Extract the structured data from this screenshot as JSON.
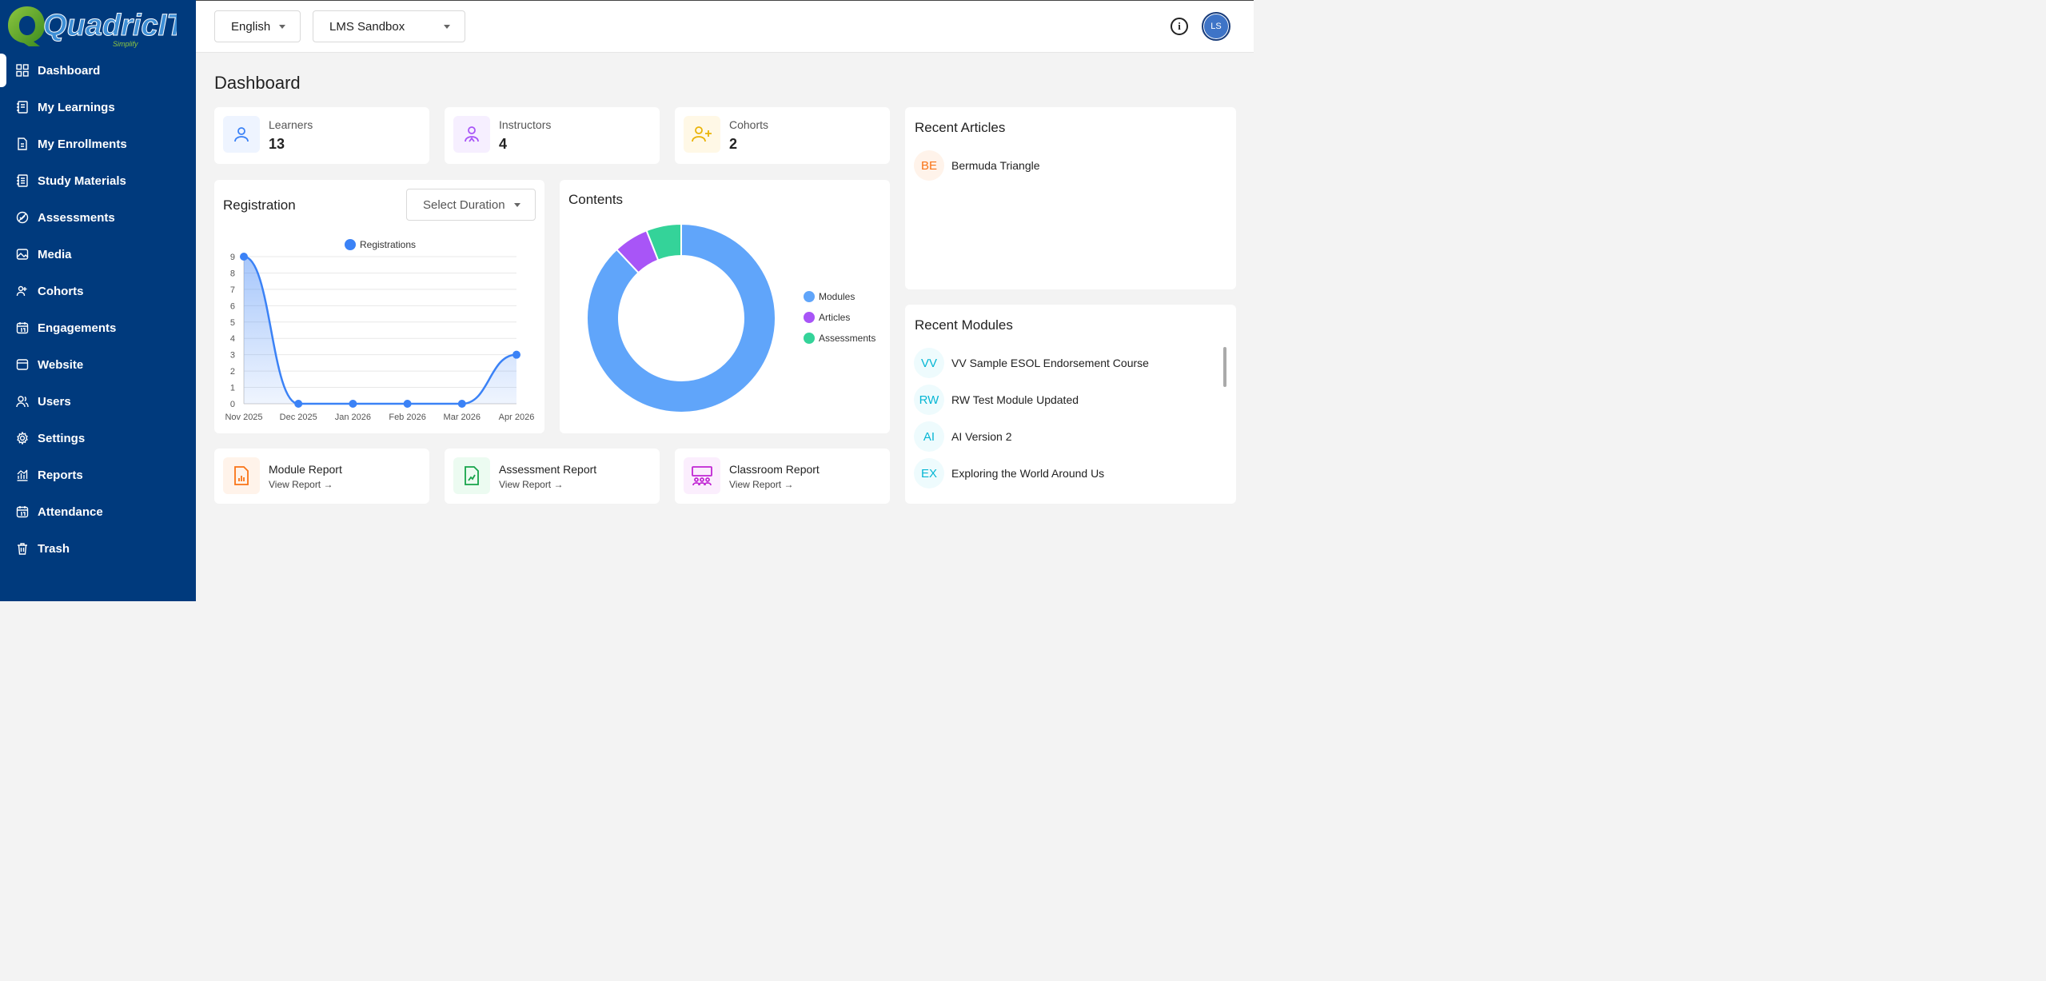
{
  "brand": {
    "logo_text": "QuadricIT",
    "logo_tagline": "Simplify"
  },
  "sidebar": {
    "items": [
      {
        "label": "Dashboard",
        "icon": "grid-icon",
        "active": true
      },
      {
        "label": "My Learnings",
        "icon": "notebook-icon"
      },
      {
        "label": "My Enrollments",
        "icon": "document-icon"
      },
      {
        "label": "Study Materials",
        "icon": "book-icon"
      },
      {
        "label": "Assessments",
        "icon": "assessment-icon"
      },
      {
        "label": "Media",
        "icon": "image-icon"
      },
      {
        "label": "Cohorts",
        "icon": "people-icon"
      },
      {
        "label": "Engagements",
        "icon": "calendar-icon"
      },
      {
        "label": "Website",
        "icon": "browser-icon"
      },
      {
        "label": "Users",
        "icon": "users-icon"
      },
      {
        "label": "Settings",
        "icon": "gear-icon"
      },
      {
        "label": "Reports",
        "icon": "chart-icon"
      },
      {
        "label": "Attendance",
        "icon": "calendar-icon"
      },
      {
        "label": "Trash",
        "icon": "trash-icon"
      }
    ]
  },
  "topbar": {
    "language": "English",
    "workspace": "LMS Sandbox",
    "info_glyph": "i",
    "avatar_initials": "LS"
  },
  "page_title": "Dashboard",
  "stats": [
    {
      "label": "Learners",
      "value": "13",
      "icon": "person-icon",
      "color": "#3b82f6",
      "bg": "#eef4ff"
    },
    {
      "label": "Instructors",
      "value": "4",
      "icon": "instructor-icon",
      "color": "#a855f7",
      "bg": "#f6efff"
    },
    {
      "label": "Cohorts",
      "value": "2",
      "icon": "add-person-icon",
      "color": "#eab308",
      "bg": "#fff8e6"
    }
  ],
  "registration": {
    "title": "Registration",
    "duration_placeholder": "Select Duration"
  },
  "contents": {
    "title": "Contents"
  },
  "chart_data": [
    {
      "type": "area",
      "title": "",
      "categories": [
        "Nov 2025",
        "Dec 2025",
        "Jan 2026",
        "Feb 2026",
        "Mar 2026",
        "Apr 2026"
      ],
      "series": [
        {
          "name": "Registrations",
          "values": [
            9,
            0,
            0,
            0,
            0,
            3
          ],
          "color": "#3b82f6"
        }
      ],
      "ylim": [
        0,
        9
      ],
      "yticks": [
        0,
        1,
        2,
        3,
        4,
        5,
        6,
        7,
        8,
        9
      ],
      "grid": true,
      "legend": "top"
    },
    {
      "type": "pie",
      "donut": true,
      "labels": [
        "Modules",
        "Articles",
        "Assessments"
      ],
      "values": [
        88,
        6,
        6
      ],
      "colors": [
        "#60a5fa",
        "#a855f7",
        "#34d399"
      ],
      "legend": "right"
    }
  ],
  "reports": [
    {
      "title": "Module Report",
      "link": "View Report →",
      "icon": "bar-report-icon",
      "color": "#f97316",
      "bg": "#fff3ea"
    },
    {
      "title": "Assessment Report",
      "link": "View Report →",
      "icon": "file-chart-icon",
      "color": "#16a34a",
      "bg": "#ecfbf1"
    },
    {
      "title": "Classroom Report",
      "link": "View Report →",
      "icon": "classroom-icon",
      "color": "#c026d3",
      "bg": "#fbeefd"
    }
  ],
  "recent_articles": {
    "title": "Recent Articles",
    "items": [
      {
        "initials": "BE",
        "title": "Bermuda Triangle",
        "color": "#f97316",
        "bg": "#fff3ea"
      }
    ]
  },
  "recent_modules": {
    "title": "Recent Modules",
    "items": [
      {
        "initials": "VV",
        "title": "VV Sample ESOL Endorsement Course"
      },
      {
        "initials": "RW",
        "title": "RW Test Module Updated"
      },
      {
        "initials": "AI",
        "title": "AI Version 2"
      },
      {
        "initials": "EX",
        "title": "Exploring the World Around Us"
      }
    ],
    "badge_color": "#06b6d4",
    "badge_bg": "#eefbfd"
  }
}
